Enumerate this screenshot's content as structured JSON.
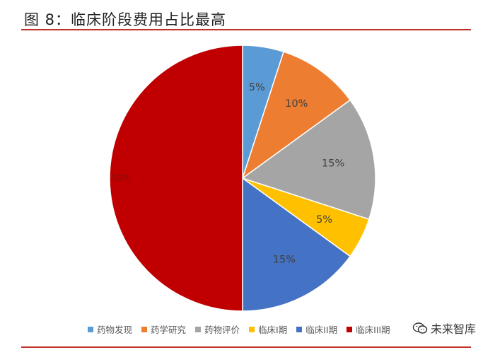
{
  "title": "图 8：临床阶段费用占比最高",
  "watermark": "未来智库",
  "chart_data": {
    "type": "pie",
    "title": "",
    "start_angle_deg": 0,
    "direction": "clockwise",
    "slices": [
      {
        "label": "药物发现",
        "value": 5,
        "value_label": "5%",
        "color": "#5b9bd5"
      },
      {
        "label": "药学研究",
        "value": 10,
        "value_label": "10%",
        "color": "#ed7d31"
      },
      {
        "label": "药物评价",
        "value": 15,
        "value_label": "15%",
        "color": "#a5a5a5"
      },
      {
        "label": "临床I期",
        "value": 5,
        "value_label": "5%",
        "color": "#ffc000"
      },
      {
        "label": "临床II期",
        "value": 15,
        "value_label": "15%",
        "color": "#4472c4"
      },
      {
        "label": "临床III期",
        "value": 50,
        "value_label": "50%",
        "color": "#c00000"
      }
    ],
    "legend_position": "bottom"
  }
}
